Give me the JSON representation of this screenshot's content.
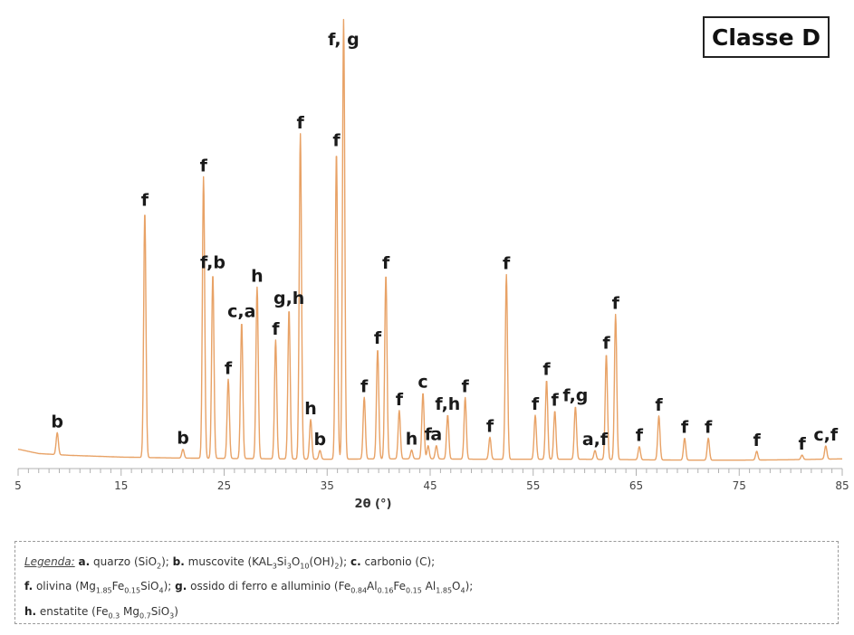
{
  "chart_data": {
    "type": "line",
    "xlabel": "2θ (°)",
    "xlim": [
      5,
      85
    ],
    "xticks": [
      5,
      15,
      25,
      35,
      45,
      55,
      65,
      75,
      85
    ],
    "grid": false,
    "panel_label": "Classe D",
    "series_color": "#E8A266",
    "baseline": [
      [
        5,
        0.04
      ],
      [
        7,
        0.03
      ],
      [
        10,
        0.026
      ],
      [
        15,
        0.022
      ],
      [
        20,
        0.02
      ],
      [
        25,
        0.019
      ],
      [
        30,
        0.018
      ],
      [
        35,
        0.017
      ],
      [
        40,
        0.018
      ],
      [
        45,
        0.018
      ],
      [
        50,
        0.017
      ],
      [
        55,
        0.017
      ],
      [
        60,
        0.017
      ],
      [
        65,
        0.016
      ],
      [
        70,
        0.015
      ],
      [
        75,
        0.015
      ],
      [
        80,
        0.016
      ],
      [
        85,
        0.018
      ]
    ],
    "peaks": [
      {
        "x": 8.8,
        "y": 0.05,
        "label": "b"
      },
      {
        "x": 17.3,
        "y": 0.56,
        "label": "f"
      },
      {
        "x": 21.0,
        "y": 0.02,
        "label": "b"
      },
      {
        "x": 23.0,
        "y": 0.64,
        "label": "f"
      },
      {
        "x": 23.9,
        "y": 0.42,
        "label": "f,b"
      },
      {
        "x": 25.4,
        "y": 0.18,
        "label": "f"
      },
      {
        "x": 26.7,
        "y": 0.31,
        "label": "c,a"
      },
      {
        "x": 28.2,
        "y": 0.39,
        "label": "h"
      },
      {
        "x": 30.0,
        "y": 0.27,
        "label": "f"
      },
      {
        "x": 31.3,
        "y": 0.34,
        "label": "g,h"
      },
      {
        "x": 32.4,
        "y": 0.74,
        "label": "f"
      },
      {
        "x": 33.4,
        "y": 0.09,
        "label": "h"
      },
      {
        "x": 34.3,
        "y": 0.02,
        "label": "b"
      },
      {
        "x": 35.9,
        "y": 0.7,
        "label": "f"
      },
      {
        "x": 36.6,
        "y": 1.0,
        "label": "f, g"
      },
      {
        "x": 38.6,
        "y": 0.14,
        "label": "f"
      },
      {
        "x": 39.9,
        "y": 0.25,
        "label": "f"
      },
      {
        "x": 40.7,
        "y": 0.42,
        "label": "f"
      },
      {
        "x": 42.0,
        "y": 0.11,
        "label": "f"
      },
      {
        "x": 43.2,
        "y": 0.02,
        "label": "h"
      },
      {
        "x": 44.3,
        "y": 0.15,
        "label": "c"
      },
      {
        "x": 44.8,
        "y": 0.03,
        "label": "f"
      },
      {
        "x": 45.6,
        "y": 0.03,
        "label": "a"
      },
      {
        "x": 46.7,
        "y": 0.1,
        "label": "f,h"
      },
      {
        "x": 48.4,
        "y": 0.14,
        "label": "f"
      },
      {
        "x": 50.8,
        "y": 0.05,
        "label": "f"
      },
      {
        "x": 52.4,
        "y": 0.42,
        "label": "f"
      },
      {
        "x": 55.2,
        "y": 0.1,
        "label": "f"
      },
      {
        "x": 56.3,
        "y": 0.18,
        "label": "f"
      },
      {
        "x": 57.1,
        "y": 0.11,
        "label": "f"
      },
      {
        "x": 59.1,
        "y": 0.12,
        "label": "f,g"
      },
      {
        "x": 61.0,
        "y": 0.02,
        "label": "a,f"
      },
      {
        "x": 62.1,
        "y": 0.24,
        "label": "f"
      },
      {
        "x": 63.0,
        "y": 0.33,
        "label": "f"
      },
      {
        "x": 65.3,
        "y": 0.03,
        "label": "f"
      },
      {
        "x": 67.2,
        "y": 0.1,
        "label": "f"
      },
      {
        "x": 69.7,
        "y": 0.05,
        "label": "f"
      },
      {
        "x": 72.0,
        "y": 0.05,
        "label": "f"
      },
      {
        "x": 76.7,
        "y": 0.02,
        "label": "f"
      },
      {
        "x": 81.1,
        "y": 0.01,
        "label": "f"
      },
      {
        "x": 83.4,
        "y": 0.03,
        "label": "c,f"
      }
    ]
  },
  "legend": {
    "title": "Legenda:",
    "line1": [
      {
        "key": "a.",
        "text": " quarzo (SiO"
      },
      {
        "sub": "2"
      },
      {
        "text": "); "
      },
      {
        "key": "b.",
        "text": " muscovite (KAL"
      },
      {
        "sub": "3"
      },
      {
        "text": "Si"
      },
      {
        "sub": "3"
      },
      {
        "text": "O"
      },
      {
        "sub": "10"
      },
      {
        "text": "(OH)"
      },
      {
        "sub": "2"
      },
      {
        "text": ");  "
      },
      {
        "key": "c.",
        "text": " carbonio (C);"
      }
    ],
    "line2": [
      {
        "key": "f.",
        "text": " olivina (Mg"
      },
      {
        "sub": "1.85"
      },
      {
        "text": "Fe"
      },
      {
        "sub": "0.15"
      },
      {
        "text": "SiO"
      },
      {
        "sub": "4"
      },
      {
        "text": ");  "
      },
      {
        "key": "g.",
        "text": " ossido di ferro e alluminio  (Fe"
      },
      {
        "sub": "0.84"
      },
      {
        "text": "Al"
      },
      {
        "sub": "0.16"
      },
      {
        "text": "Fe"
      },
      {
        "sub": "0.15"
      },
      {
        "text": "  Al"
      },
      {
        "sub": "1.85"
      },
      {
        "text": "O"
      },
      {
        "sub": "4"
      },
      {
        "text": ");"
      }
    ],
    "line3": [
      {
        "key": "h.",
        "text": " enstatite (Fe"
      },
      {
        "sub": "0.3"
      },
      {
        "text": "  Mg"
      },
      {
        "sub": "0.7"
      },
      {
        "text": "SiO"
      },
      {
        "sub": "3"
      },
      {
        "text": ")"
      }
    ]
  }
}
